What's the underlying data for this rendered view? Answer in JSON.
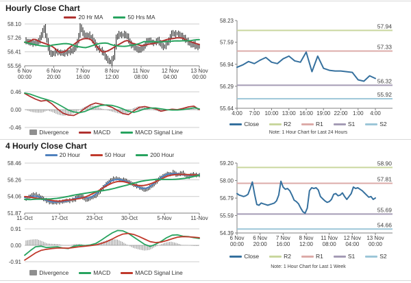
{
  "chart_data": [
    {
      "id": "hourly_price",
      "type": "candles_ma",
      "title": "Hourly Close Chart",
      "legend": [
        {
          "label": "20 Hr MA",
          "color": "#b03230"
        },
        {
          "label": "50 Hrs MA",
          "color": "#27a35f"
        }
      ],
      "yticks": [
        "58.10",
        "57.26",
        "56.41",
        "55.56"
      ],
      "ylim": [
        55.56,
        58.1
      ],
      "xticks": [
        [
          "6 Nov",
          "00:00"
        ],
        [
          "6 Nov",
          "20:00"
        ],
        [
          "7 Nov",
          "16:00"
        ],
        [
          "8 Nov",
          "12:00"
        ],
        [
          "11 Nov",
          "08:00"
        ],
        [
          "12 Nov",
          "04:00"
        ],
        [
          "13 Nov",
          "00:00"
        ]
      ],
      "candle_color": "#1a1a1a",
      "close": [
        57.1,
        57.0,
        56.95,
        56.9,
        56.95,
        57.05,
        57.45,
        57.9,
        57.05,
        56.35,
        56.3,
        56.45,
        56.4,
        56.35,
        56.3,
        56.35,
        56.4,
        56.45,
        56.6,
        57.0,
        57.95,
        57.55,
        57.4,
        57.45,
        57.3,
        57.0,
        56.65,
        56.55,
        56.4,
        56.1,
        55.85,
        55.75,
        56.1,
        57.3,
        57.5,
        57.45,
        57.5,
        57.35,
        56.9,
        56.75,
        56.6,
        56.5,
        56.55,
        56.7,
        57.05,
        57.1,
        56.95,
        57.0,
        57.15,
        56.9,
        56.7,
        56.9,
        57.1,
        57.55,
        57.45,
        57.5,
        57.4,
        57.3,
        57.15,
        57.0,
        56.85,
        56.9,
        56.7,
        56.8
      ]
    },
    {
      "id": "hourly_macd",
      "type": "macd",
      "legend": [
        {
          "label": "Divergence",
          "color": "#8f8f8f",
          "shape": "bar"
        },
        {
          "label": "MACD",
          "color": "#b03230"
        },
        {
          "label": "MACD Signal Line",
          "color": "#27a35f"
        }
      ],
      "yticks": [
        "0.46",
        "0.00",
        "-0.46"
      ],
      "ylim": [
        -0.46,
        0.46
      ],
      "series": {
        "macd": [
          0.42,
          0.34,
          0.27,
          0.22,
          0.24,
          0.15,
          0.02,
          -0.09,
          -0.14,
          -0.15,
          -0.08,
          0.03,
          0.12,
          0.17,
          0.14,
          0.11,
          0.06,
          -0.02,
          -0.1,
          -0.13,
          -0.03,
          0.06,
          0.08,
          0.05,
          0.02,
          -0.04,
          -0.01,
          0.01,
          0.0,
          0.03,
          0.07,
          0.09,
          0.0
        ],
        "signal": [
          0.43,
          0.4,
          0.35,
          0.3,
          0.26,
          0.22,
          0.15,
          0.07,
          -0.01,
          -0.06,
          -0.08,
          -0.05,
          0.01,
          0.07,
          0.11,
          0.12,
          0.11,
          0.07,
          0.02,
          -0.04,
          -0.07,
          -0.03,
          0.02,
          0.04,
          0.04,
          0.02,
          0.0,
          -0.01,
          -0.01,
          0.0,
          0.02,
          0.05,
          0.02
        ]
      }
    },
    {
      "id": "hourly_levels",
      "type": "line_levels",
      "legend": [
        {
          "label": "Close",
          "color": "#35709e"
        },
        {
          "label": "R2",
          "color": "#c9d79e"
        },
        {
          "label": "R1",
          "color": "#dcaba8"
        },
        {
          "label": "S1",
          "color": "#a49bb5"
        },
        {
          "label": "S2",
          "color": "#9cc6d8"
        }
      ],
      "yticks": [
        "58.23",
        "57.59",
        "56.94",
        "56.29",
        "55.64"
      ],
      "ylim": [
        55.64,
        58.23
      ],
      "xticks": [
        "4:00",
        "7:00",
        "10:00",
        "13:00",
        "16:00",
        "19:00",
        "22:00",
        "1:00",
        "4:00"
      ],
      "levels": [
        {
          "name": "R2",
          "value": 57.94,
          "label": "57.94",
          "color": "#c9d79e"
        },
        {
          "name": "R1",
          "value": 57.33,
          "label": "57.33",
          "color": "#dcaba8"
        },
        {
          "name": "S1",
          "value": 56.32,
          "label": "56.32",
          "color": "#a49bb5"
        },
        {
          "name": "S2",
          "value": 55.92,
          "label": "55.92",
          "color": "#9cc6d8"
        }
      ],
      "close": [
        56.85,
        56.92,
        57.02,
        56.96,
        57.06,
        57.14,
        57.0,
        56.96,
        57.1,
        57.18,
        57.04,
        57.0,
        57.3,
        56.72,
        57.18,
        56.82,
        56.76,
        56.74,
        56.74,
        56.72,
        56.7,
        56.48,
        56.44,
        56.6,
        56.52
      ],
      "note": "Note: 1 Hour Chart for Last 24 Hours"
    },
    {
      "id": "four_hourly_price",
      "type": "candles_ma",
      "title": "4 Hourly Close Chart",
      "legend": [
        {
          "label": "20 Hour",
          "color": "#4f81bd"
        },
        {
          "label": "50 Hour",
          "color": "#c0392b"
        },
        {
          "label": "200 Hour",
          "color": "#27a35f"
        }
      ],
      "yticks": [
        "58.46",
        "56.26",
        "54.06",
        "51.87"
      ],
      "ylim": [
        51.87,
        58.46
      ],
      "xticks": [
        "11-Oct",
        "17-Oct",
        "23-Oct",
        "30-Oct",
        "5-Nov",
        "11-Nov"
      ],
      "candle_color": "#1a1a1a",
      "close": [
        53.75,
        53.9,
        54.1,
        54.35,
        54.2,
        54.0,
        53.8,
        53.6,
        53.4,
        53.3,
        53.35,
        53.3,
        53.35,
        53.4,
        53.5,
        53.45,
        53.55,
        53.6,
        54.1,
        54.2,
        53.9,
        53.6,
        53.8,
        54.0,
        54.1,
        54.5,
        54.9,
        55.3,
        55.7,
        56.0,
        56.3,
        56.45,
        56.35,
        56.2,
        56.3,
        56.1,
        55.9,
        55.7,
        55.5,
        55.3,
        55.1,
        54.9,
        55.0,
        55.3,
        55.6,
        56.0,
        56.4,
        56.7,
        56.9,
        57.1,
        57.0,
        57.3,
        56.9,
        57.0,
        57.2,
        56.8,
        56.6,
        56.9,
        57.0,
        56.85,
        56.9
      ]
    },
    {
      "id": "four_hourly_macd",
      "type": "macd",
      "legend": [
        {
          "label": "Divergence",
          "color": "#8f8f8f",
          "shape": "bar"
        },
        {
          "label": "MACD",
          "color": "#27a35f"
        },
        {
          "label": "MACD Signal Line",
          "color": "#c0392b"
        }
      ],
      "yticks": [
        "0.91",
        "0.00",
        "-0.91"
      ],
      "ylim": [
        -0.91,
        0.91
      ],
      "series": {
        "macd": [
          -0.55,
          -0.3,
          -0.08,
          -0.05,
          -0.12,
          -0.1,
          -0.08,
          -0.15,
          -0.18,
          -0.05,
          0.0,
          -0.02,
          0.02,
          0.1,
          0.28,
          0.48,
          0.68,
          0.82,
          0.8,
          0.66,
          0.45,
          0.25,
          0.05,
          -0.06,
          0.06,
          0.22,
          0.42,
          0.56,
          0.58,
          0.5,
          0.48,
          0.42,
          0.38
        ],
        "signal": [
          -0.82,
          -0.62,
          -0.42,
          -0.28,
          -0.22,
          -0.18,
          -0.15,
          -0.15,
          -0.16,
          -0.12,
          -0.08,
          -0.05,
          -0.02,
          0.02,
          0.1,
          0.2,
          0.34,
          0.5,
          0.62,
          0.66,
          0.6,
          0.48,
          0.34,
          0.2,
          0.15,
          0.18,
          0.26,
          0.36,
          0.45,
          0.48,
          0.47,
          0.45,
          0.42
        ]
      }
    },
    {
      "id": "weekly_levels",
      "type": "line_levels",
      "legend": [
        {
          "label": "Close",
          "color": "#35709e"
        },
        {
          "label": "R2",
          "color": "#c9d79e"
        },
        {
          "label": "R1",
          "color": "#dcaba8"
        },
        {
          "label": "S1",
          "color": "#a49bb5"
        },
        {
          "label": "S2",
          "color": "#9cc6d8"
        }
      ],
      "yticks": [
        "59.20",
        "58.00",
        "56.79",
        "55.59",
        "54.39"
      ],
      "ylim": [
        54.39,
        59.2
      ],
      "xticks": [
        [
          "6 Nov",
          "00:00"
        ],
        [
          "6 Nov",
          "20:00"
        ],
        [
          "7 Nov",
          "16:00"
        ],
        [
          "8 Nov",
          "12:00"
        ],
        [
          "11 Nov",
          "08:00"
        ],
        [
          "12 Nov",
          "04:00"
        ],
        [
          "13 Nov",
          "00:00"
        ]
      ],
      "levels": [
        {
          "name": "R2",
          "value": 58.9,
          "label": "58.90",
          "color": "#c9d79e"
        },
        {
          "name": "R1",
          "value": 57.81,
          "label": "57.81",
          "color": "#dcaba8"
        },
        {
          "name": "S1",
          "value": 55.69,
          "label": "55.69",
          "color": "#a49bb5"
        },
        {
          "name": "S2",
          "value": 54.66,
          "label": "54.66",
          "color": "#9cc6d8"
        }
      ],
      "close": [
        57.1,
        57.0,
        56.95,
        56.9,
        56.95,
        57.05,
        57.45,
        57.9,
        57.05,
        56.35,
        56.3,
        56.45,
        56.4,
        56.35,
        56.3,
        56.35,
        56.4,
        56.45,
        56.6,
        57.0,
        57.95,
        57.55,
        57.4,
        57.45,
        57.3,
        57.0,
        56.65,
        56.55,
        56.4,
        56.1,
        55.85,
        55.75,
        56.1,
        57.3,
        57.5,
        57.45,
        57.5,
        57.35,
        56.9,
        56.75,
        56.6,
        56.5,
        56.55,
        56.7,
        57.05,
        57.1,
        56.95,
        57.0,
        57.15,
        56.9,
        56.7,
        56.9,
        57.1,
        57.55,
        57.45,
        57.5,
        57.4,
        57.3,
        57.15,
        57.0,
        56.85,
        56.9,
        56.7,
        56.8
      ],
      "note": "Note: 1 Hour Chart for Last 1 Week"
    }
  ]
}
